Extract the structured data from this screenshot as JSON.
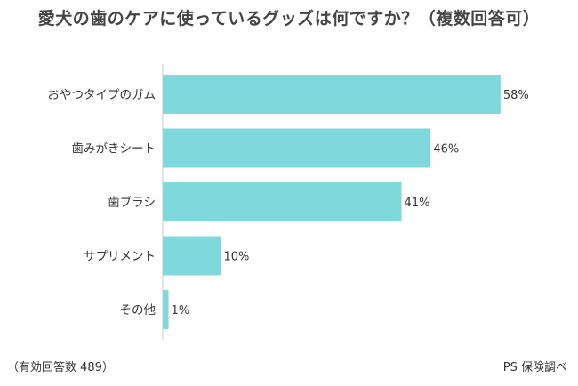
{
  "chart_data": {
    "type": "bar",
    "orientation": "horizontal",
    "title": "愛犬の歯のケアに使っているグッズは何ですか？（複数回答可）",
    "categories": [
      "おやつタイプのガム",
      "歯みがきシート",
      "歯ブラシ",
      "サプリメント",
      "その他"
    ],
    "values": [
      58,
      46,
      41,
      10,
      1
    ],
    "value_labels": [
      "58%",
      "46%",
      "41%",
      "10%",
      "1%"
    ],
    "unit": "%",
    "xlim": [
      0,
      100
    ],
    "bar_color": "#7fd8dc",
    "axis_color": "#c8c8c8",
    "grid": false,
    "legend": "none"
  },
  "footer": {
    "left": "（有効回答数 489）",
    "right": "PS 保険調べ"
  }
}
